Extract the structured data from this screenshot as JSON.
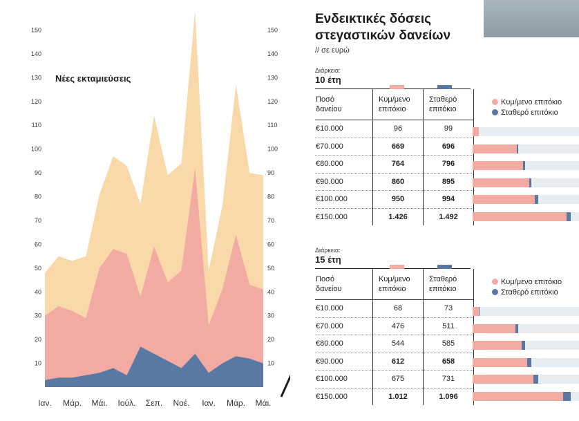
{
  "chart_data": {
    "type": "area",
    "title": "Νέες εκταμιεύσεις",
    "categories": [
      "Ιαν.",
      "",
      "Μάρ.",
      "",
      "Μάι.",
      "",
      "Ιούλ.",
      "",
      "Σεπ.",
      "",
      "Νοέ.",
      "",
      "Ιαν.",
      "",
      "Μάρ.",
      "",
      "Μάι."
    ],
    "ylim": [
      0,
      160
    ],
    "yticks": [
      10,
      20,
      30,
      40,
      50,
      60,
      70,
      80,
      90,
      100,
      110,
      120,
      130,
      140,
      150
    ],
    "series": [
      {
        "color": "#f9d8a9",
        "values": [
          48,
          55,
          53,
          55,
          81,
          97,
          93,
          77,
          114,
          89,
          94,
          158,
          49,
          76,
          127,
          90,
          89
        ]
      },
      {
        "color": "#f2aba3",
        "values": [
          30,
          34,
          32,
          29,
          50,
          58,
          56,
          38,
          59,
          44,
          49,
          92,
          26,
          41,
          64,
          43,
          41
        ]
      },
      {
        "color": "#5a79a2",
        "values": [
          3,
          4,
          4,
          5,
          6,
          8,
          5,
          17,
          14,
          11,
          8,
          14,
          6,
          10,
          13,
          12,
          10
        ]
      }
    ]
  },
  "panel": {
    "title_line1": "Ενδεικτικές δόσεις",
    "title_line2": "στεγαστικών δανείων",
    "subtitle": "// σε ευρώ",
    "photo_icon": "photo-thumbnail"
  },
  "colors": {
    "variable": "#f2aba3",
    "fixed": "#5a79a2",
    "track": "#e8edf1"
  },
  "legend": {
    "variable": "Κυμ/μενο επιτόκιο",
    "fixed": "Σταθερό επιτόκιο"
  },
  "table_headers": {
    "amount_line1": "Ποσό",
    "amount_line2": "δανείου",
    "var_line1": "Κυμ/μενο",
    "var_line2": "επιτόκιο",
    "fixed_line1": "Σταθερό",
    "fixed_line2": "επιτόκιο"
  },
  "sections": [
    {
      "duration_label": "Διάρκεια:",
      "duration_value": "10 έτη",
      "rows": [
        {
          "amount": "€10.000",
          "var": "96",
          "fixed": "99",
          "bold": false
        },
        {
          "amount": "€70.000",
          "var": "669",
          "fixed": "696",
          "bold": true
        },
        {
          "amount": "€80.000",
          "var": "764",
          "fixed": "796",
          "bold": true
        },
        {
          "amount": "€90.000",
          "var": "860",
          "fixed": "895",
          "bold": true
        },
        {
          "amount": "€100.000",
          "var": "950",
          "fixed": "994",
          "bold": true
        },
        {
          "amount": "€150.000",
          "var": "1.426",
          "fixed": "1.492",
          "bold": true
        }
      ]
    },
    {
      "duration_label": "Διάρκεια:",
      "duration_value": "15 έτη",
      "rows": [
        {
          "amount": "€10.000",
          "var": "68",
          "fixed": "73",
          "bold": false
        },
        {
          "amount": "€70.000",
          "var": "476",
          "fixed": "511",
          "bold": false
        },
        {
          "amount": "€80.000",
          "var": "544",
          "fixed": "585",
          "bold": false
        },
        {
          "amount": "€90.000",
          "var": "612",
          "fixed": "658",
          "bold": true
        },
        {
          "amount": "€100.000",
          "var": "675",
          "fixed": "731",
          "bold": false
        },
        {
          "amount": "€150.000",
          "var": "1.012",
          "fixed": "1.096",
          "bold": true
        }
      ]
    }
  ]
}
